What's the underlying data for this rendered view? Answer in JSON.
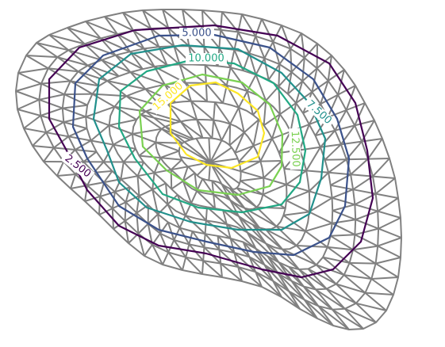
{
  "chart_data": {
    "type": "tricontour",
    "grid": true,
    "levels": [
      {
        "label": "2.500",
        "value": 2.5,
        "color": "#440154"
      },
      {
        "label": "5.000",
        "value": 5.0,
        "color": "#3b528b"
      },
      {
        "label": "7.500",
        "value": 7.5,
        "color": "#21908c"
      },
      {
        "label": "10.000",
        "value": 10.0,
        "color": "#22a884"
      },
      {
        "label": "12.500",
        "value": 12.5,
        "color": "#7ad151"
      },
      {
        "label": "15.000",
        "value": 15.0,
        "color": "#fde725"
      }
    ],
    "mesh_color": "#808080",
    "color_scale": "viridis"
  }
}
